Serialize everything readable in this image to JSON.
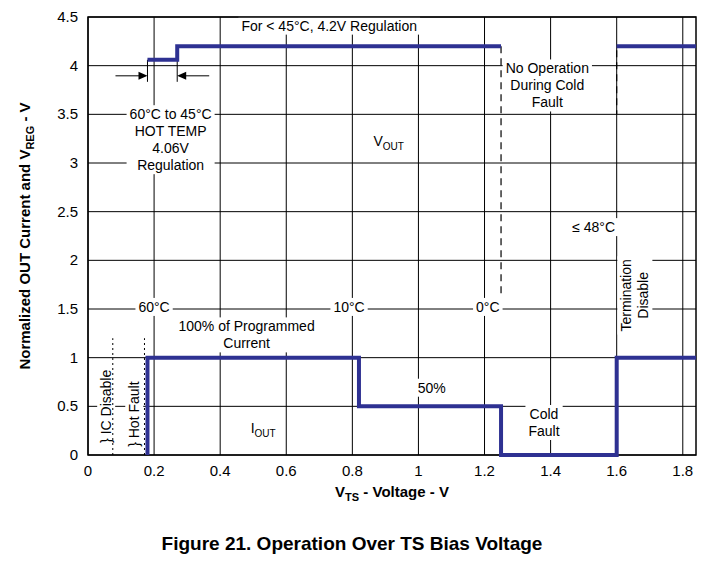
{
  "chart_data": {
    "type": "line",
    "title": "Figure 21.  Operation Over TS Bias Voltage",
    "x_label": [
      "V",
      "TS",
      " - Voltage  - V"
    ],
    "y_label": [
      "Normalized OUT Current and V",
      "REG",
      " - V"
    ],
    "xlim": [
      0,
      1.84
    ],
    "xticks": [
      0,
      0.2,
      0.4,
      0.6,
      0.8,
      1,
      1.2,
      1.4,
      1.6,
      1.8
    ],
    "ylim": [
      0,
      4.5
    ],
    "yticks": [
      0,
      0.5,
      1,
      1.5,
      2,
      2.5,
      3,
      3.5,
      4,
      4.5
    ],
    "grid": true,
    "series": [
      {
        "color": "#2e3192",
        "line_style": "solid",
        "x": [
          0.18,
          0.27,
          0.27,
          1.25,
          1.4,
          1.6,
          1.84
        ],
        "values": [
          4.06,
          4.06,
          4.2,
          4.2,
          null,
          4.2,
          4.2
        ]
      },
      {
        "color": "#2e3192",
        "line_style": "solid",
        "x": [
          0.18,
          0.18,
          0.82,
          0.82,
          1.25,
          1.25,
          1.6,
          1.6,
          1.84
        ],
        "values": [
          0,
          1,
          1,
          0.5,
          0.5,
          0,
          0,
          1,
          1
        ]
      }
    ],
    "annotations": [
      {
        "text": "For < 45°C, 4.2V Regulation",
        "x": 0.73,
        "y": 4.36
      },
      {
        "lines": [
          "No Operation",
          "During Cold",
          "Fault"
        ],
        "x": 1.39,
        "y": 3.92
      },
      {
        "lines": [
          "60°C to 45°C",
          "HOT TEMP",
          "4.06V",
          "Regulation"
        ],
        "x": 0.25,
        "y": 3.45
      },
      {
        "text": [
          "V",
          "OUT"
        ],
        "x": 0.91,
        "y": 3.17
      },
      {
        "text": "≤ 48°C",
        "x": 1.53,
        "y": 2.29
      },
      {
        "text": "60°C",
        "x": 0.2,
        "y": 1.47
      },
      {
        "text": "10°C",
        "x": 0.79,
        "y": 1.47
      },
      {
        "text": "0°C",
        "x": 1.21,
        "y": 1.47
      },
      {
        "lines": [
          "100% of Programmed",
          "Current"
        ],
        "x": 0.48,
        "y": 1.27
      },
      {
        "text": "50%",
        "x": 1.04,
        "y": 0.64
      },
      {
        "text": [
          "I",
          "OUT"
        ],
        "x": 0.53,
        "y": 0.23
      },
      {
        "lines": [
          "Cold",
          "Fault"
        ],
        "x": 1.38,
        "y": 0.37
      }
    ],
    "vertical_annotations": [
      {
        "lines": [
          "Termination",
          "Disable"
        ],
        "x": 1.655,
        "y": 1.64
      },
      {
        "text": "} IC Disable",
        "x": 0.055,
        "y": 0.5
      },
      {
        "text": "} Hot Fault",
        "x": 0.14,
        "y": 0.42
      }
    ]
  }
}
